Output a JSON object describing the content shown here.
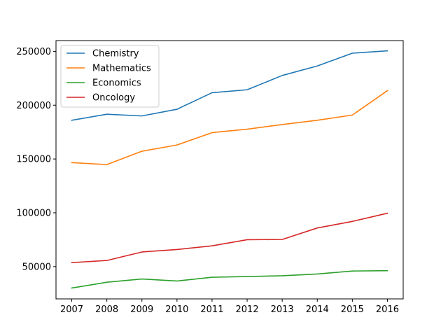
{
  "chart_data": {
    "type": "line",
    "title": "",
    "xlabel": "",
    "ylabel": "",
    "x": [
      2007,
      2008,
      2009,
      2010,
      2011,
      2012,
      2013,
      2014,
      2015,
      2016
    ],
    "x_tick_labels": [
      "2007",
      "2008",
      "2009",
      "2010",
      "2011",
      "2012",
      "2013",
      "2014",
      "2015",
      "2016"
    ],
    "xlim": [
      2006.55,
      2016.45
    ],
    "ylim": [
      20000,
      260000
    ],
    "y_ticks": [
      50000,
      100000,
      150000,
      200000,
      250000
    ],
    "y_tick_labels": [
      "50000",
      "100000",
      "150000",
      "200000",
      "250000"
    ],
    "grid": false,
    "legend_position": "top-left",
    "series": [
      {
        "name": "Chemistry",
        "color": "#1f77b4",
        "values": [
          186000,
          191600,
          190000,
          196200,
          211600,
          214300,
          227600,
          236400,
          248300,
          250500
        ]
      },
      {
        "name": "Mathematics",
        "color": "#ff7f0e",
        "values": [
          146600,
          144800,
          157200,
          163000,
          174500,
          177700,
          182000,
          186000,
          190800,
          213500
        ]
      },
      {
        "name": "Economics",
        "color": "#2ca02c",
        "values": [
          30100,
          35500,
          38500,
          36600,
          40100,
          40800,
          41500,
          43100,
          45900,
          46200
        ]
      },
      {
        "name": "Oncology",
        "color": "#d62728",
        "values": [
          53700,
          55700,
          63600,
          65900,
          69300,
          75000,
          75200,
          85900,
          92000,
          99600
        ]
      }
    ]
  }
}
